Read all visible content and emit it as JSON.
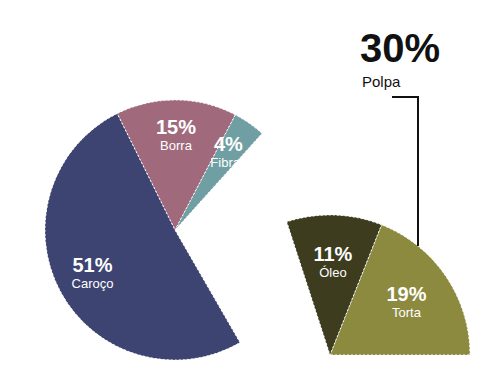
{
  "chart_data": {
    "type": "pie",
    "categories": [
      "Fibras",
      "Borra",
      "Caroço",
      "Torta",
      "Óleo"
    ],
    "values": [
      4,
      15,
      51,
      19,
      11
    ],
    "value_labels": [
      "4%",
      "15%",
      "51%",
      "19%",
      "11%"
    ],
    "colors": [
      "#6f9fa2",
      "#a06a7c",
      "#3e4472",
      "#8c8a3e",
      "#3d3c1f"
    ],
    "data_labels": true,
    "group": {
      "label": "Polpa",
      "value": 30,
      "value_label": "30%",
      "categories": [
        "Torta",
        "Óleo"
      ]
    }
  }
}
